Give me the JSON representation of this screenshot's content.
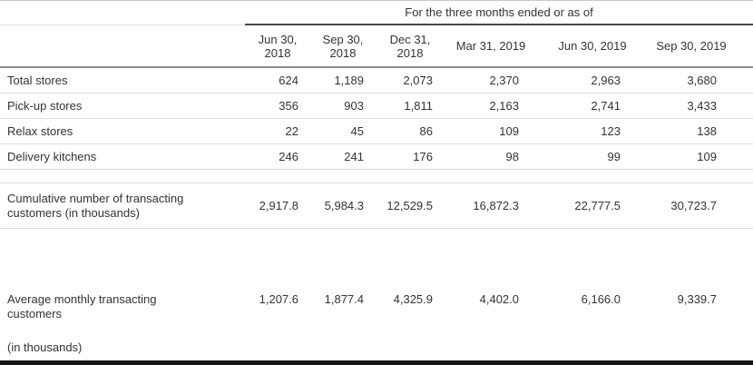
{
  "table": {
    "group_header": "For the three months ended or as of",
    "columns": [
      "Jun 30,\n2018",
      "Sep 30,\n2018",
      "Dec 31,\n2018",
      "Mar 31, 2019",
      "Jun 30, 2019",
      "Sep 30, 2019"
    ],
    "rows": [
      {
        "label": "Total stores",
        "values": [
          "624",
          "1,189",
          "2,073",
          "2,370",
          "2,963",
          "3,680"
        ]
      },
      {
        "label": "Pick-up stores",
        "values": [
          "356",
          "903",
          "1,811",
          "2,163",
          "2,741",
          "3,433"
        ]
      },
      {
        "label": "Relax stores",
        "values": [
          "22",
          "45",
          "86",
          "109",
          "123",
          "138"
        ]
      },
      {
        "label": "Delivery kitchens",
        "values": [
          "246",
          "241",
          "176",
          "98",
          "99",
          "109"
        ]
      },
      {
        "label": "Cumulative number of transacting customers (in thousands)",
        "values": [
          "2,917.8",
          "5,984.3",
          "12,529.5",
          "16,872.3",
          "22,777.5",
          "30,723.7"
        ]
      },
      {
        "label": "Average monthly transacting customers",
        "values": [
          "1,207.6",
          "1,877.4",
          "4,325.9",
          "4,402.0",
          "6,166.0",
          "9,339.7"
        ]
      }
    ],
    "footnote": "(in thousands)"
  },
  "colors": {
    "text": "#333333",
    "row_line": "#dcdcdc",
    "header_line": "#8c8c8c",
    "group_underline": "#4a4a4a",
    "bottom_bar": "#141414"
  }
}
